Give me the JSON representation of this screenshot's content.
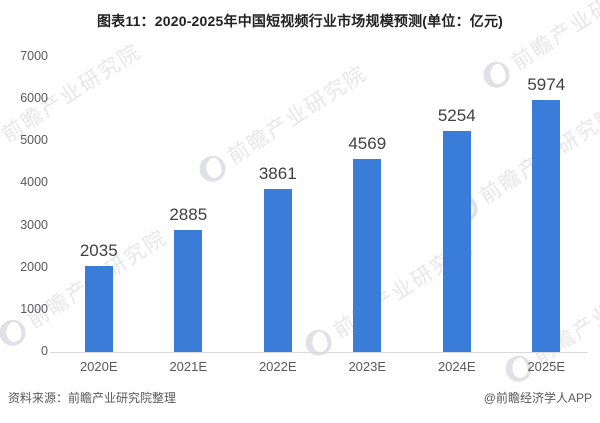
{
  "page": {
    "watermark": {
      "text": "前瞻产业研究院",
      "logo": "forward-circle-swoosh"
    },
    "footer": {
      "source": "资料来源：前瞻产业研究院整理",
      "credit": "@前瞻经济学人APP"
    }
  },
  "chart_data": {
    "type": "bar",
    "title": "图表11：2020-2025年中国短视频行业市场规模预测(单位：亿元)",
    "categories": [
      "2020E",
      "2021E",
      "2022E",
      "2023E",
      "2024E",
      "2025E"
    ],
    "values": [
      2035,
      2885,
      3861,
      4569,
      5254,
      5974
    ],
    "unit": "亿元",
    "xlabel": "",
    "ylabel": "",
    "ylim": [
      0,
      7000
    ],
    "yticks": [
      0,
      1000,
      2000,
      3000,
      4000,
      5000,
      6000,
      7000
    ],
    "grid": false,
    "legend": false,
    "bar_color": "#3a7dd8",
    "value_label_color": "#404040",
    "tick_color": "#595959"
  }
}
